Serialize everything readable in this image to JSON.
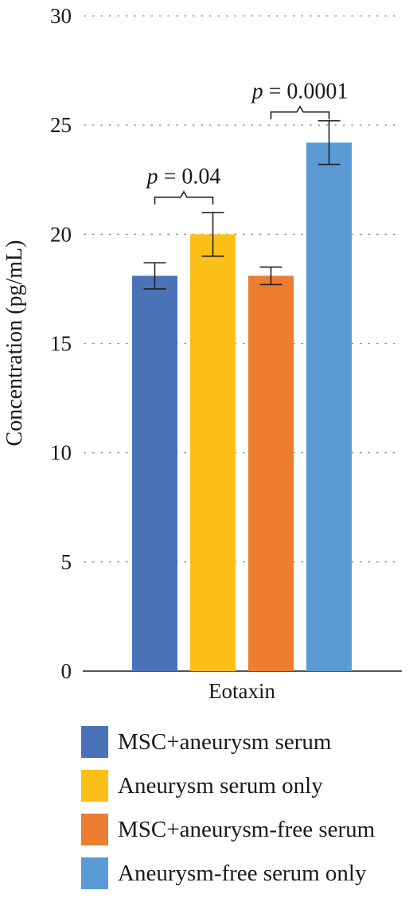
{
  "chart_data": {
    "type": "bar",
    "title": "",
    "xlabel": "",
    "ylabel": "Concentration (pg/mL)",
    "ylim": [
      0,
      30
    ],
    "yticks": [
      0,
      5,
      10,
      15,
      20,
      25,
      30
    ],
    "grid": "horizontal dotted",
    "legend_position": "bottom",
    "categories": [
      "Eotaxin"
    ],
    "series": [
      {
        "name": "MSC+aneurysm serum",
        "values": [
          18.1
        ],
        "error": [
          0.6
        ],
        "color": "#4A72B8"
      },
      {
        "name": "Aneurysm serum only",
        "values": [
          20.0
        ],
        "error": [
          1.0
        ],
        "color": "#FCBF17"
      },
      {
        "name": "MSC+aneurysm-free serum",
        "values": [
          18.1
        ],
        "error": [
          0.4
        ],
        "color": "#EC7D31"
      },
      {
        "name": "Aneurysm-free serum only",
        "values": [
          24.2
        ],
        "error": [
          1.0
        ],
        "color": "#5B9BD5"
      }
    ],
    "annotations": [
      {
        "p_symbol": "p",
        "text": " = 0.04",
        "between": [
          0,
          1
        ],
        "y": 21.7
      },
      {
        "p_symbol": "p",
        "text": " = 0.0001",
        "between": [
          2,
          3
        ],
        "y": 25.6
      }
    ]
  }
}
